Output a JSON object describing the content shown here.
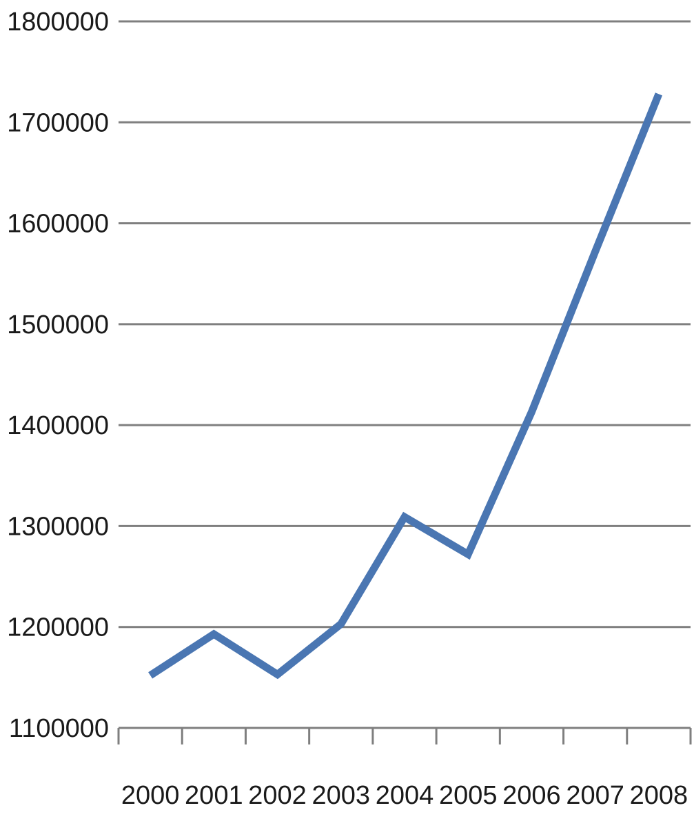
{
  "chart_data": {
    "type": "line",
    "title": "",
    "xlabel": "",
    "ylabel": "",
    "categories": [
      "2000",
      "2001",
      "2002",
      "2003",
      "2004",
      "2005",
      "2006",
      "2007",
      "2008"
    ],
    "series": [
      {
        "values": [
          1152000,
          1193000,
          1153000,
          1203000,
          1309000,
          1272000,
          1413000,
          1572000,
          1728000
        ],
        "color": "#4a76b2"
      }
    ],
    "ylim": [
      1100000,
      1800000
    ],
    "yticks": [
      1100000,
      1200000,
      1300000,
      1400000,
      1500000,
      1600000,
      1700000,
      1800000
    ],
    "ytick_labels": [
      "1100000",
      "1200000",
      "1300000",
      "1400000",
      "1500000",
      "1600000",
      "1700000",
      "1800000"
    ],
    "grid": true,
    "legend": "none"
  }
}
